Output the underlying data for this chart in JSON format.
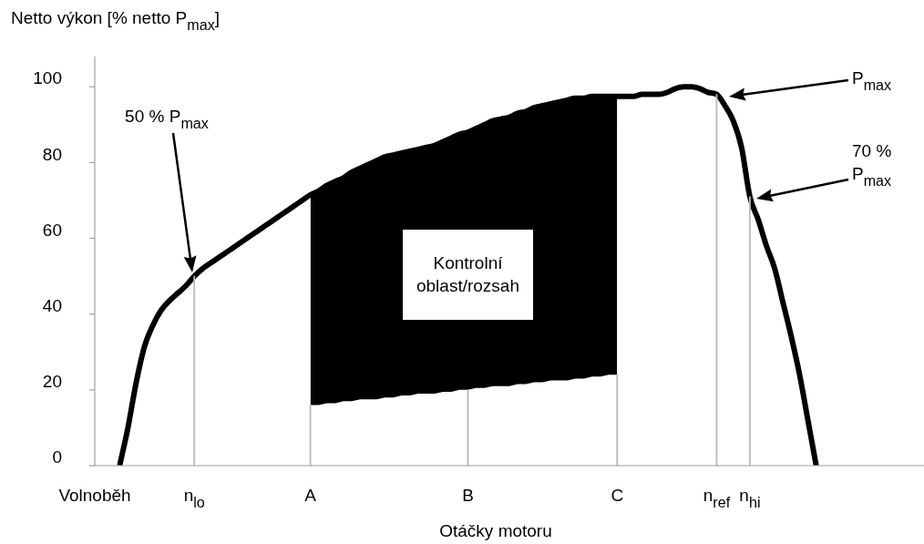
{
  "chart_data": {
    "type": "line",
    "xlabel": "Otáčky motoru",
    "ylabel": "Netto výkon [% netto P$_{max}$]",
    "categories": [
      "Volnoběh",
      null,
      null,
      null,
      null,
      null,
      null,
      null,
      null,
      null,
      null,
      null,
      "n$_{lo}$",
      null,
      null,
      null,
      null,
      null,
      null,
      null,
      null,
      null,
      null,
      null,
      null,
      null,
      "A",
      null,
      null,
      null,
      null,
      null,
      null,
      null,
      null,
      null,
      null,
      null,
      null,
      null,
      null,
      null,
      null,
      null,
      null,
      "B",
      null,
      null,
      null,
      null,
      null,
      null,
      null,
      null,
      null,
      null,
      null,
      null,
      null,
      null,
      null,
      null,
      null,
      "C",
      null,
      null,
      null,
      null,
      null,
      null,
      null,
      null,
      null,
      null,
      null,
      "n$_{ref}$",
      null,
      null,
      null,
      "n$_{hi}$",
      null,
      null,
      null,
      null,
      null,
      null,
      null,
      null,
      null,
      null,
      null,
      null,
      null,
      null,
      null,
      null,
      null,
      null,
      null,
      null,
      null
    ],
    "ylim": [
      0,
      108
    ],
    "yticks": [
      0,
      20,
      40,
      60,
      80,
      100
    ],
    "grid": false,
    "legend": false,
    "marker": "none",
    "line_style": "solid",
    "series": [
      {
        "color": "#000000",
        "values": [
          null,
          null,
          null,
          0,
          10,
          22,
          31.5,
          37,
          41,
          43.5,
          45.5,
          47.5,
          50,
          52,
          53.5,
          55,
          56.5,
          58,
          59.5,
          61,
          62.5,
          64,
          65.5,
          67,
          68.5,
          70,
          71.5,
          72.5,
          74,
          75,
          76,
          77.5,
          78.5,
          79.5,
          80.5,
          81.5,
          82,
          82.5,
          83,
          83.5,
          84,
          84.5,
          85.5,
          86.5,
          87.5,
          88,
          89,
          90,
          91,
          91.5,
          92,
          93,
          93.5,
          94.5,
          95,
          95.5,
          96,
          96.5,
          97,
          97,
          97.5,
          97.5,
          97.5,
          97.5,
          97.5,
          97.5,
          98,
          98,
          98,
          98.5,
          99.5,
          100,
          100,
          99.5,
          98.5,
          98,
          95,
          91,
          84,
          71,
          65,
          58,
          52,
          43,
          34,
          24,
          12,
          0,
          null,
          null,
          null,
          null,
          null,
          null,
          null,
          null,
          null,
          null,
          null,
          null,
          null
        ],
        "upper": [
          null,
          null,
          null,
          null,
          null,
          null,
          null,
          null,
          null,
          null,
          null,
          null,
          null,
          null,
          null,
          null,
          null,
          null,
          null,
          null,
          null,
          null,
          null,
          null,
          null,
          null,
          71.5,
          72.5,
          74,
          75,
          76,
          77.5,
          78.5,
          79.5,
          80.5,
          81.5,
          82,
          82.5,
          83,
          83.5,
          84,
          84.5,
          85.5,
          86.5,
          87.5,
          88,
          89,
          90,
          91,
          91.5,
          92,
          93,
          93.5,
          94.5,
          95,
          95.5,
          96,
          96.5,
          97,
          97,
          97.5,
          97.5,
          97.5,
          97.5,
          null,
          null,
          null,
          null,
          null,
          null,
          null,
          null,
          null,
          null,
          null,
          null,
          null,
          null,
          null,
          null,
          null,
          null,
          null,
          null,
          null,
          null,
          null,
          null,
          null,
          null,
          null,
          null,
          null,
          null,
          null,
          null,
          null,
          null,
          null,
          null,
          null
        ],
        "lower": [
          null,
          null,
          null,
          null,
          null,
          null,
          null,
          null,
          null,
          null,
          null,
          null,
          null,
          null,
          null,
          null,
          null,
          null,
          null,
          null,
          null,
          null,
          null,
          null,
          null,
          null,
          16,
          16,
          16.5,
          16.5,
          17,
          17,
          17.5,
          17.5,
          17.5,
          18,
          18,
          18.5,
          18.5,
          19,
          19,
          19,
          19.5,
          19.5,
          20,
          20,
          20.5,
          20.5,
          21,
          21,
          21,
          21.5,
          21.5,
          22,
          22,
          22.5,
          22.5,
          22.5,
          23,
          23,
          23.5,
          23.5,
          24,
          24,
          null,
          null,
          null,
          null,
          null,
          null,
          null,
          null,
          null,
          null,
          null,
          null,
          null,
          null,
          null,
          null,
          null,
          null,
          null,
          null,
          null,
          null,
          null,
          null,
          null,
          null,
          null,
          null,
          null,
          null,
          null,
          null,
          null,
          null,
          null,
          null,
          null
        ]
      },
      {
        "type": "bar",
        "color": "#bbbbbb",
        "values": [
          null,
          null,
          null,
          null,
          null,
          null,
          null,
          null,
          null,
          null,
          null,
          null,
          50,
          null,
          null,
          null,
          null,
          null,
          null,
          null,
          null,
          null,
          null,
          null,
          null,
          null,
          16,
          null,
          null,
          null,
          null,
          null,
          null,
          null,
          null,
          null,
          null,
          null,
          null,
          null,
          null,
          null,
          null,
          null,
          null,
          20,
          null,
          null,
          null,
          null,
          null,
          null,
          null,
          null,
          null,
          null,
          null,
          null,
          null,
          null,
          null,
          null,
          null,
          24,
          null,
          null,
          null,
          null,
          null,
          null,
          null,
          null,
          null,
          null,
          null,
          98,
          null,
          null,
          null,
          71,
          null,
          null,
          null,
          null,
          null,
          null,
          null,
          null,
          null,
          null,
          null,
          null,
          null,
          null,
          null,
          null,
          null,
          null,
          null,
          null,
          null
        ]
      }
    ],
    "annotations": [
      "50 % P$_{max}$",
      "P$_{max}$",
      "70 %\nP$_{max}$",
      "Kontrolní\noblast/rozsah"
    ]
  }
}
